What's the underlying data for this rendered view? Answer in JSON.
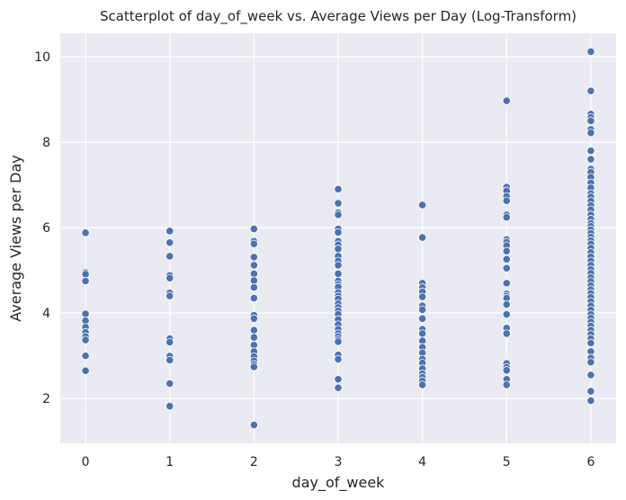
{
  "chart_data": {
    "type": "scatter",
    "title": "Scatterplot of day_of_week vs. Average Views per Day (Log-Transform)",
    "xlabel": "day_of_week",
    "ylabel": "Average Views per Day",
    "xlim": [
      -0.3,
      6.3
    ],
    "ylim": [
      0.95,
      10.55
    ],
    "xticks": [
      0,
      1,
      2,
      3,
      4,
      5,
      6
    ],
    "yticks": [
      2,
      4,
      6,
      8,
      10
    ],
    "grid": true,
    "background": "#eaeaf2",
    "grid_color": "#ffffff",
    "point_color": "#4c72b0",
    "point_edge": "#ffffff",
    "series": [
      {
        "points": [
          [
            0,
            5.88
          ],
          [
            0,
            4.95
          ],
          [
            0,
            4.91
          ],
          [
            0,
            4.75
          ],
          [
            0,
            3.98
          ],
          [
            0,
            3.82
          ],
          [
            0,
            3.67
          ],
          [
            0,
            3.55
          ],
          [
            0,
            3.45
          ],
          [
            0,
            3.37
          ],
          [
            0,
            3.0
          ],
          [
            0,
            2.65
          ],
          [
            1,
            5.92
          ],
          [
            1,
            5.65
          ],
          [
            1,
            5.33
          ],
          [
            1,
            4.88
          ],
          [
            1,
            4.82
          ],
          [
            1,
            4.47
          ],
          [
            1,
            4.4
          ],
          [
            1,
            3.4
          ],
          [
            1,
            3.32
          ],
          [
            1,
            2.99
          ],
          [
            1,
            2.9
          ],
          [
            1,
            2.35
          ],
          [
            1,
            1.82
          ],
          [
            2,
            5.97
          ],
          [
            2,
            5.68
          ],
          [
            2,
            5.62
          ],
          [
            2,
            5.31
          ],
          [
            2,
            5.12
          ],
          [
            2,
            4.92
          ],
          [
            2,
            4.76
          ],
          [
            2,
            4.6
          ],
          [
            2,
            4.35
          ],
          [
            2,
            3.95
          ],
          [
            2,
            3.87
          ],
          [
            2,
            3.6
          ],
          [
            2,
            3.43
          ],
          [
            2,
            3.25
          ],
          [
            2,
            3.1
          ],
          [
            2,
            2.98
          ],
          [
            2,
            2.88
          ],
          [
            2,
            2.8
          ],
          [
            2,
            2.74
          ],
          [
            2,
            1.38
          ],
          [
            3,
            6.9
          ],
          [
            3,
            6.57
          ],
          [
            3,
            6.35
          ],
          [
            3,
            6.3
          ],
          [
            3,
            5.97
          ],
          [
            3,
            5.89
          ],
          [
            3,
            5.68
          ],
          [
            3,
            5.6
          ],
          [
            3,
            5.5
          ],
          [
            3,
            5.33
          ],
          [
            3,
            5.22
          ],
          [
            3,
            5.12
          ],
          [
            3,
            4.92
          ],
          [
            3,
            4.75
          ],
          [
            3,
            4.67
          ],
          [
            3,
            4.61
          ],
          [
            3,
            4.48
          ],
          [
            3,
            4.4
          ],
          [
            3,
            4.33
          ],
          [
            3,
            4.22
          ],
          [
            3,
            4.13
          ],
          [
            3,
            4.05
          ],
          [
            3,
            3.97
          ],
          [
            3,
            3.85
          ],
          [
            3,
            3.73
          ],
          [
            3,
            3.62
          ],
          [
            3,
            3.52
          ],
          [
            3,
            3.45
          ],
          [
            3,
            3.38
          ],
          [
            3,
            3.33
          ],
          [
            3,
            3.02
          ],
          [
            3,
            2.92
          ],
          [
            3,
            2.45
          ],
          [
            3,
            2.25
          ],
          [
            4,
            6.53
          ],
          [
            4,
            5.77
          ],
          [
            4,
            4.7
          ],
          [
            4,
            4.6
          ],
          [
            4,
            4.5
          ],
          [
            4,
            4.38
          ],
          [
            4,
            4.17
          ],
          [
            4,
            4.08
          ],
          [
            4,
            3.87
          ],
          [
            4,
            3.62
          ],
          [
            4,
            3.52
          ],
          [
            4,
            3.35
          ],
          [
            4,
            3.2
          ],
          [
            4,
            3.07
          ],
          [
            4,
            2.92
          ],
          [
            4,
            2.83
          ],
          [
            4,
            2.7
          ],
          [
            4,
            2.58
          ],
          [
            4,
            2.5
          ],
          [
            4,
            2.41
          ],
          [
            4,
            2.32
          ],
          [
            5,
            8.97
          ],
          [
            5,
            6.95
          ],
          [
            5,
            6.86
          ],
          [
            5,
            6.73
          ],
          [
            5,
            6.63
          ],
          [
            5,
            6.3
          ],
          [
            5,
            6.24
          ],
          [
            5,
            5.72
          ],
          [
            5,
            5.66
          ],
          [
            5,
            5.58
          ],
          [
            5,
            5.45
          ],
          [
            5,
            5.26
          ],
          [
            5,
            5.05
          ],
          [
            5,
            4.7
          ],
          [
            5,
            4.45
          ],
          [
            5,
            4.4
          ],
          [
            5,
            4.35
          ],
          [
            5,
            4.2
          ],
          [
            5,
            3.97
          ],
          [
            5,
            3.65
          ],
          [
            5,
            3.52
          ],
          [
            5,
            2.82
          ],
          [
            5,
            2.73
          ],
          [
            5,
            2.66
          ],
          [
            5,
            2.45
          ],
          [
            5,
            2.32
          ],
          [
            6,
            10.12
          ],
          [
            6,
            9.2
          ],
          [
            6,
            8.66
          ],
          [
            6,
            8.58
          ],
          [
            6,
            8.5
          ],
          [
            6,
            8.3
          ],
          [
            6,
            8.22
          ],
          [
            6,
            7.8
          ],
          [
            6,
            7.6
          ],
          [
            6,
            7.37
          ],
          [
            6,
            7.3
          ],
          [
            6,
            7.18
          ],
          [
            6,
            7.05
          ],
          [
            6,
            6.93
          ],
          [
            6,
            6.8
          ],
          [
            6,
            6.72
          ],
          [
            6,
            6.62
          ],
          [
            6,
            6.52
          ],
          [
            6,
            6.42
          ],
          [
            6,
            6.3
          ],
          [
            6,
            6.2
          ],
          [
            6,
            6.1
          ],
          [
            6,
            6.03
          ],
          [
            6,
            5.95
          ],
          [
            6,
            5.87
          ],
          [
            6,
            5.78
          ],
          [
            6,
            5.7
          ],
          [
            6,
            5.62
          ],
          [
            6,
            5.52
          ],
          [
            6,
            5.42
          ],
          [
            6,
            5.32
          ],
          [
            6,
            5.22
          ],
          [
            6,
            5.12
          ],
          [
            6,
            5.02
          ],
          [
            6,
            4.93
          ],
          [
            6,
            4.83
          ],
          [
            6,
            4.74
          ],
          [
            6,
            4.64
          ],
          [
            6,
            4.55
          ],
          [
            6,
            4.46
          ],
          [
            6,
            4.37
          ],
          [
            6,
            4.27
          ],
          [
            6,
            4.17
          ],
          [
            6,
            4.07
          ],
          [
            6,
            3.97
          ],
          [
            6,
            3.88
          ],
          [
            6,
            3.79
          ],
          [
            6,
            3.7
          ],
          [
            6,
            3.6
          ],
          [
            6,
            3.5
          ],
          [
            6,
            3.4
          ],
          [
            6,
            3.3
          ],
          [
            6,
            3.1
          ],
          [
            6,
            2.95
          ],
          [
            6,
            2.85
          ],
          [
            6,
            2.55
          ],
          [
            6,
            2.17
          ],
          [
            6,
            1.95
          ]
        ]
      }
    ]
  }
}
